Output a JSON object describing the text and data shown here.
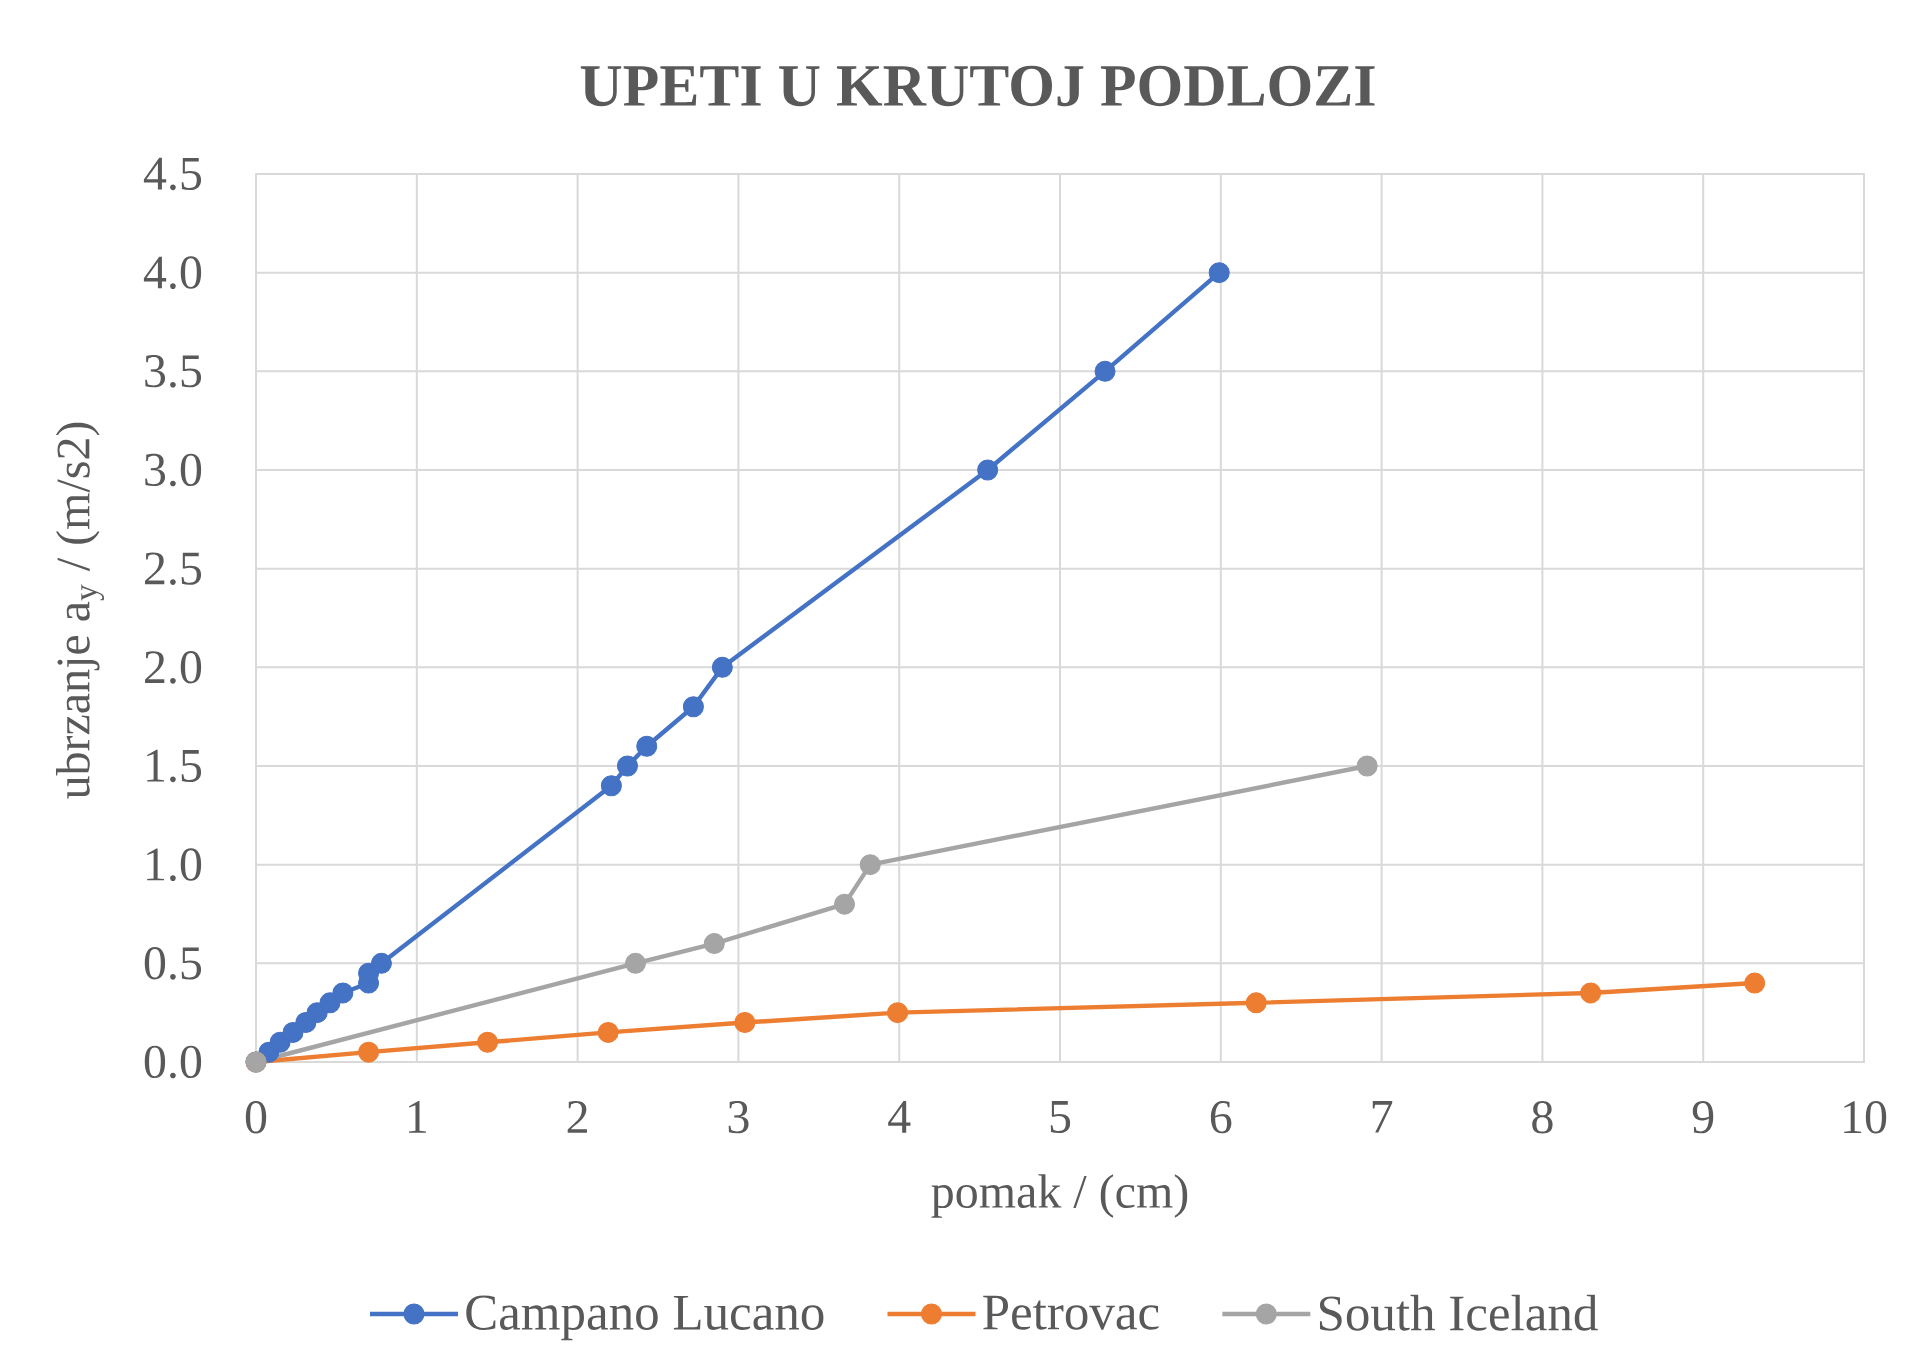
{
  "chart_data": {
    "type": "line",
    "title": "UPETI U KRUTOJ PODLOZI",
    "xlabel": "pomak / (cm)",
    "ylabel": "ubrzanje a$_{y}$ / (m/s2)",
    "series": [
      {
        "name": "Campano Lucano",
        "color": "#4472c4",
        "x": [
          0,
          0.08,
          0.15,
          0.23,
          0.31,
          0.38,
          0.46,
          0.54,
          0.7,
          0.7,
          0.78,
          2.21,
          2.31,
          2.43,
          2.72,
          2.9,
          4.55,
          5.28,
          5.99
        ],
        "values": [
          0,
          0.05,
          0.1,
          0.15,
          0.2,
          0.25,
          0.3,
          0.35,
          0.4,
          0.45,
          0.5,
          1.4,
          1.5,
          1.6,
          1.8,
          2.0,
          3.0,
          3.5,
          4.0
        ]
      },
      {
        "name": "Petrovac",
        "color": "#ed7d31",
        "x": [
          0,
          0.7,
          1.44,
          2.19,
          3.04,
          3.99,
          6.22,
          8.3,
          9.32
        ],
        "values": [
          0,
          0.05,
          0.1,
          0.15,
          0.2,
          0.25,
          0.3,
          0.35,
          0.4
        ]
      },
      {
        "name": "South Iceland",
        "color": "#a5a5a5",
        "x": [
          0,
          2.36,
          2.85,
          3.66,
          3.82,
          6.91
        ],
        "values": [
          0,
          0.5,
          0.6,
          0.8,
          1.0,
          1.5
        ]
      }
    ],
    "xlim": [
      0,
      10
    ],
    "xticks": [
      0,
      1,
      2,
      3,
      4,
      5,
      6,
      7,
      8,
      9,
      10
    ],
    "ylim": [
      0,
      4.5
    ],
    "yticks": [
      {
        "value": 0,
        "label": "0.0"
      },
      0.5,
      {
        "value": 1,
        "label": "1.0"
      },
      1.5,
      {
        "value": 2,
        "label": "2.0"
      },
      2.5,
      {
        "value": 3,
        "label": "3.0"
      },
      3.5,
      {
        "value": 4,
        "label": "4.0"
      },
      4.5
    ],
    "grid": true,
    "legend": "bottom",
    "marker": "circle",
    "line_style": "solid"
  }
}
